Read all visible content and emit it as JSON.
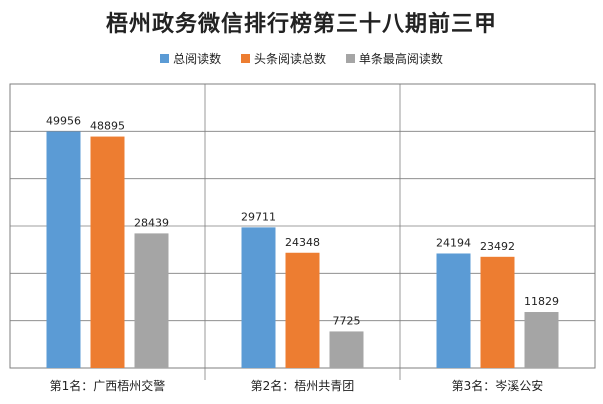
{
  "chart_data": {
    "type": "bar",
    "title": "梧州政务微信排行榜第三十八期前三甲",
    "categories": [
      "第1名：广西梧州交警",
      "第2名：梧州共青团",
      "第3名：岑溪公安"
    ],
    "series": [
      {
        "name": "总阅读数",
        "color": "#5B9BD5",
        "values": [
          49956,
          29711,
          24194
        ]
      },
      {
        "name": "头条阅读总数",
        "color": "#ED7D31",
        "values": [
          48895,
          24348,
          23492
        ]
      },
      {
        "name": "单条最高阅读数",
        "color": "#A5A5A5",
        "values": [
          28439,
          7725,
          11829
        ]
      }
    ],
    "ylim": [
      0,
      60000
    ],
    "grid": true,
    "legend_position": "top"
  }
}
